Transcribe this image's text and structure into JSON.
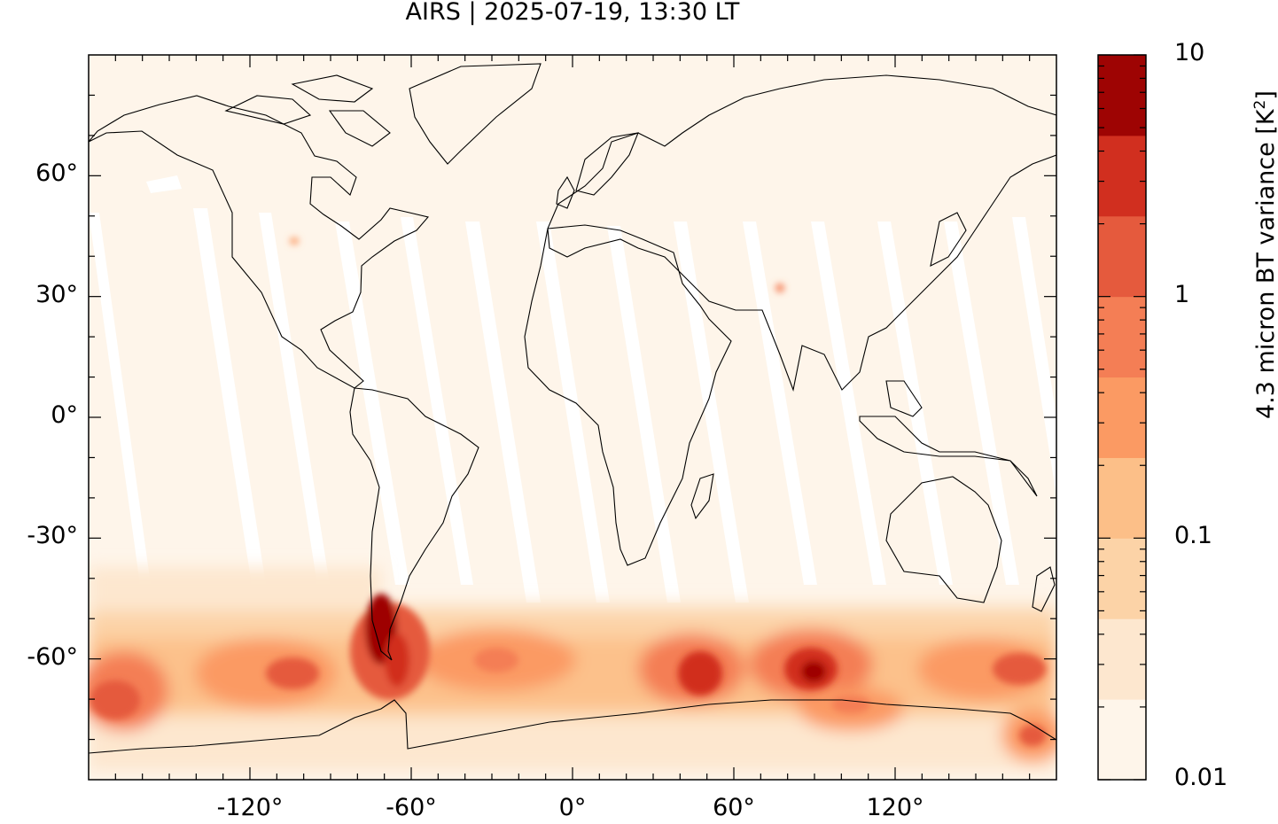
{
  "title": "AIRS | 2025-07-19, 13:30 LT",
  "colorbar": {
    "label_main": "4.3 micron BT variance [K",
    "label_exp": "2",
    "label_close": "]",
    "tick_labels": [
      "10",
      "1",
      "0.1",
      "0.01"
    ],
    "colors": [
      "#fff5eb",
      "#fee6ce",
      "#fdd0a2",
      "#fdae6b",
      "#fd8d3c",
      "#f16913",
      "#e6550d",
      "#d94801",
      "#a63603",
      "#7f2704"
    ],
    "display_colors": [
      "#fef5ea",
      "#fde7cf",
      "#fcd3a7",
      "#fcbf88",
      "#fb9a63",
      "#f47e55",
      "#e55a3d",
      "#d12f1f",
      "#9e0403"
    ]
  },
  "map": {
    "projection": "equirectangular",
    "lon_range": [
      -180,
      180
    ],
    "lat_range": [
      -90,
      90
    ],
    "lat_ticks": [
      {
        "value": 60,
        "label": "60°"
      },
      {
        "value": 30,
        "label": "30°"
      },
      {
        "value": 0,
        "label": "0°"
      },
      {
        "value": -30,
        "label": "-30°"
      },
      {
        "value": -60,
        "label": "-60°"
      }
    ],
    "lon_ticks": [
      {
        "value": -120,
        "label": "-120°"
      },
      {
        "value": -60,
        "label": "-60°"
      },
      {
        "value": 0,
        "label": "0°"
      },
      {
        "value": 60,
        "label": "60°"
      },
      {
        "value": 120,
        "label": "120°"
      }
    ]
  }
}
